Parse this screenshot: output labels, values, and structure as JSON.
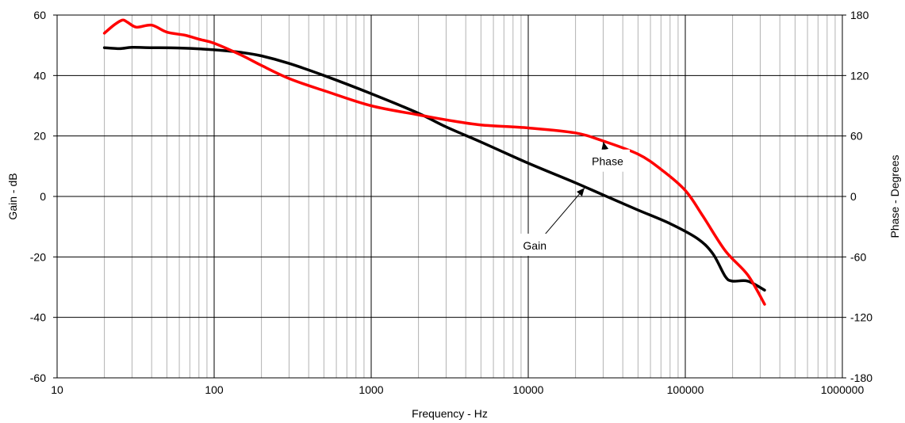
{
  "chart_data": {
    "type": "line",
    "title": "",
    "xlabel": "Frequency - Hz",
    "ylabel": "Gain - dB",
    "y2label": "Phase - Degrees",
    "xscale": "log",
    "xlim": [
      10,
      1000000
    ],
    "ylim": [
      -60,
      60
    ],
    "y2lim": [
      -180,
      180
    ],
    "grid": true,
    "legend": "none",
    "x_ticks": [
      "10",
      "100",
      "1000",
      "10000",
      "100000",
      "1000000"
    ],
    "y_ticks": [
      "60",
      "40",
      "20",
      "0",
      "-20",
      "-40",
      "-60"
    ],
    "y2_ticks": [
      "180",
      "120",
      "60",
      "0",
      "-60",
      "-120",
      "-180"
    ],
    "colors": {
      "gain": "#000000",
      "phase": "#ff0000"
    },
    "series": [
      {
        "name": "Gain",
        "axis": "left",
        "x": [
          20,
          25,
          30,
          40,
          60,
          100,
          150,
          200,
          300,
          500,
          1000,
          2000,
          3000,
          5000,
          10000,
          20000,
          30000,
          50000,
          80000,
          120000,
          150000,
          180000,
          200000,
          250000,
          320000
        ],
        "y": [
          49.2,
          48.9,
          49.3,
          49.2,
          49.1,
          48.5,
          47.6,
          46.5,
          44,
          40,
          34,
          27.5,
          23,
          18,
          11,
          4.5,
          0.5,
          -4.5,
          -9,
          -14,
          -19,
          -26.5,
          -28,
          -28,
          -31
        ]
      },
      {
        "name": "Phase",
        "axis": "right",
        "x": [
          20,
          23,
          26,
          28,
          32,
          40,
          50,
          65,
          80,
          100,
          150,
          200,
          300,
          500,
          1000,
          2000,
          3000,
          5000,
          10000,
          20000,
          30000,
          50000,
          70000,
          100000,
          130000,
          180000,
          250000,
          320000
        ],
        "y": [
          162,
          170,
          175,
          173,
          168,
          170,
          163,
          160,
          156,
          152,
          140,
          130,
          117,
          105,
          90,
          81,
          76,
          71,
          68,
          63,
          55,
          42,
          27,
          6,
          -20,
          -54,
          -78,
          -107
        ]
      }
    ],
    "annotations": [
      {
        "text": "Phase",
        "target": {
          "series": "Phase",
          "x": 30000,
          "y": 55
        },
        "at": {
          "x": 32000,
          "y": 34
        }
      },
      {
        "text": "Gain",
        "target": {
          "series": "Gain",
          "x": 23000,
          "y": 3
        },
        "at": {
          "x": 11000,
          "y": -16.5
        }
      }
    ]
  }
}
